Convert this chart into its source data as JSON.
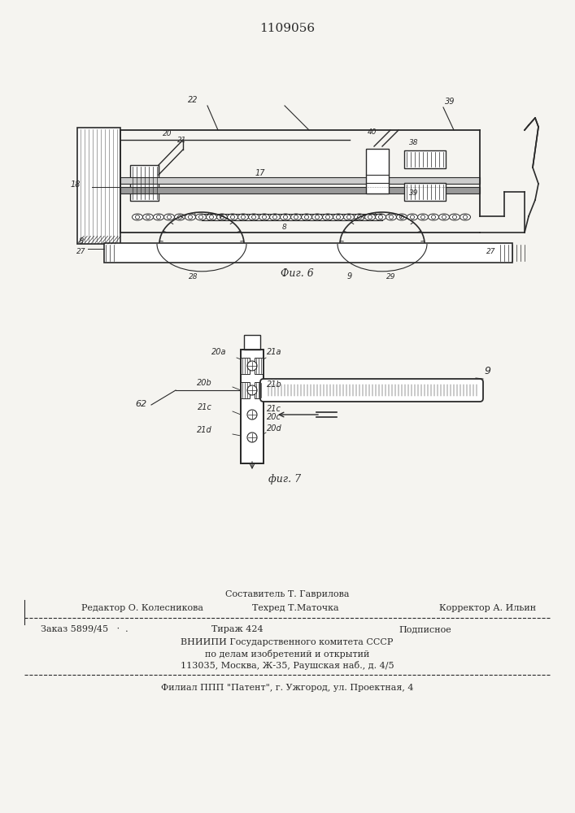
{
  "patent_number": "1109056",
  "fig6_label": "Фиг. 6",
  "fig7_label": "фиг. 7",
  "footer_sestavitel": "Составитель Т. Гаврилова",
  "footer_redaktor": "Редактор О. Колесникова",
  "footer_tehred": "Техред Т.Маточка",
  "footer_korrektor": "Корректор А. Ильин",
  "footer_zakaz": "Заказ 5899/45",
  "footer_tirazh": "Тираж 424",
  "footer_podpisnoe": "Подписное",
  "footer_vniip1": "ВНИИПИ Государственного комитета СССР",
  "footer_vniip2": "по делам изобретений и открытий",
  "footer_addr": "113035, Москва, Ж-35, Раушская наб., д. 4/5",
  "footer_filial": "Филиал ППП \"Патент\", г. Ужгород, ул. Проектная, 4",
  "bg_color": "#f5f4f0",
  "line_color": "#2a2a2a"
}
